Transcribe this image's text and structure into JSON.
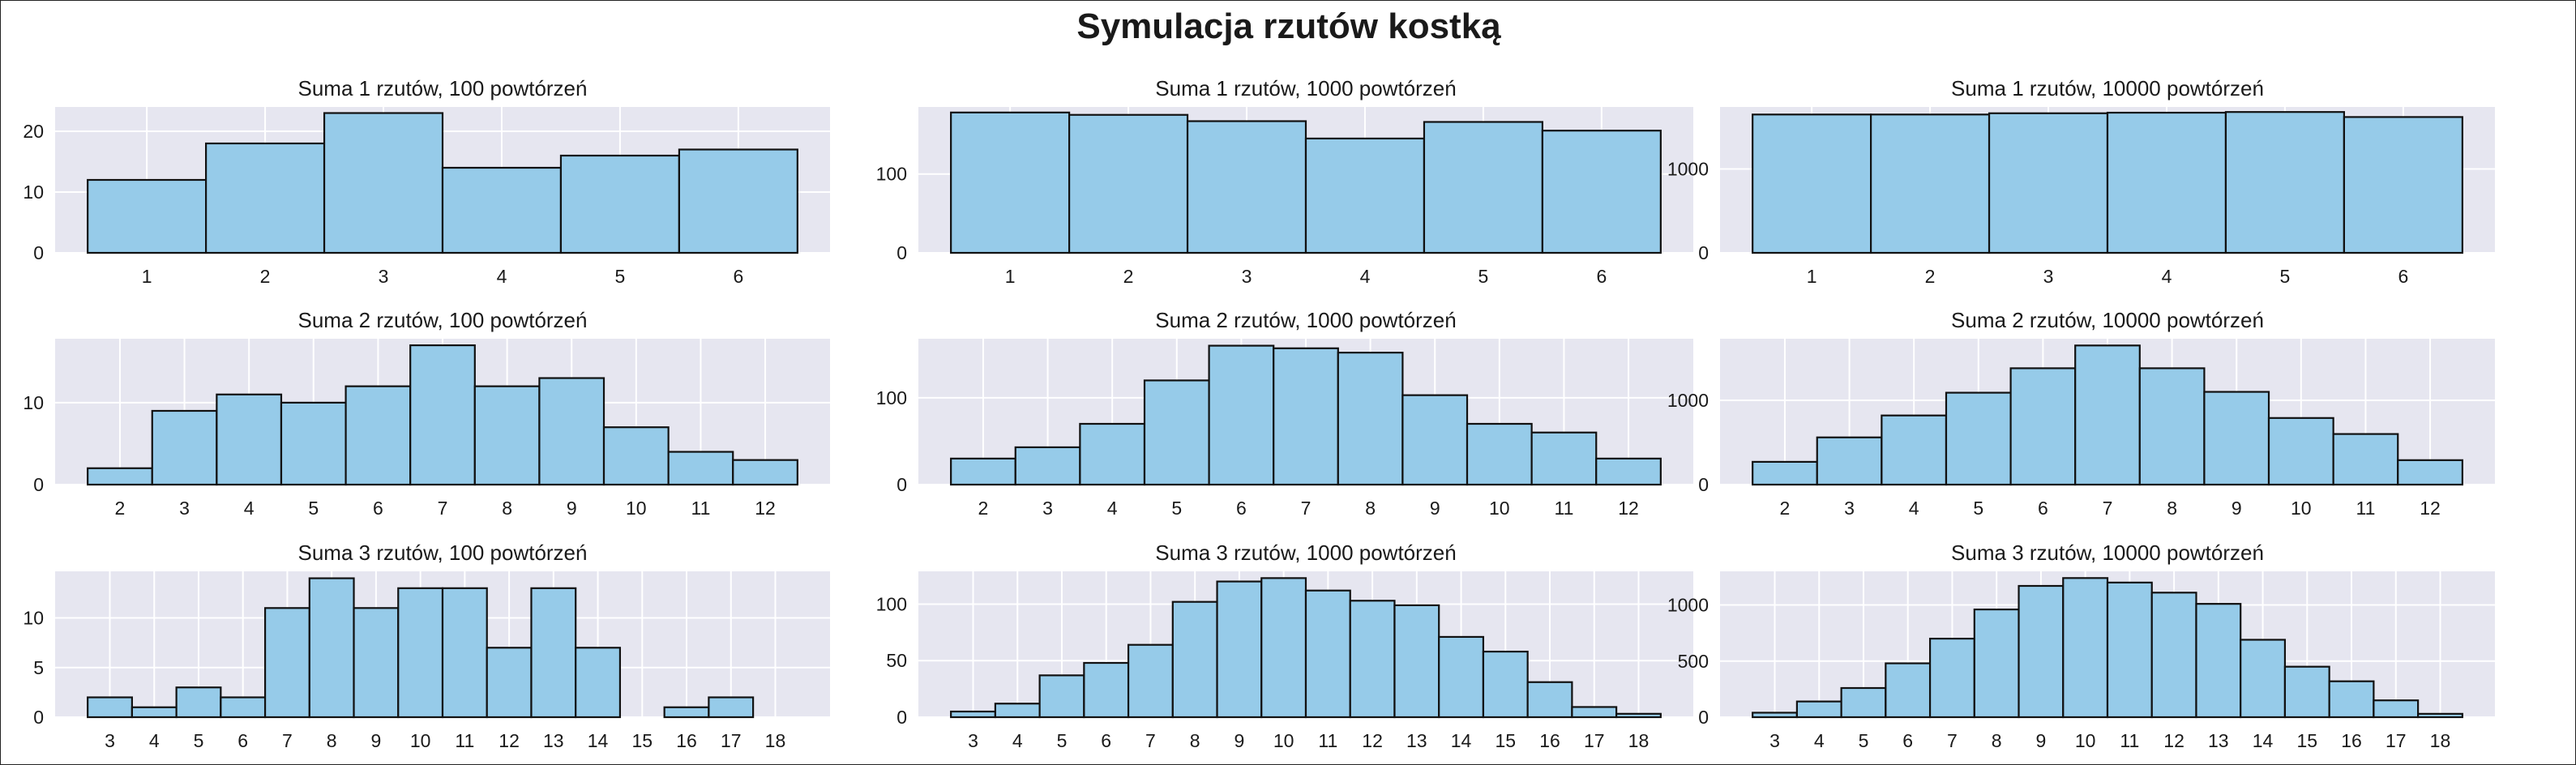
{
  "suptitle": "Symulacja rzutów kostką",
  "colors": {
    "bar_fill": "#96cbe9",
    "bar_edge": "#111111",
    "plot_bg": "#e6e6f0",
    "grid": "#ffffff"
  },
  "chart_data": [
    {
      "type": "bar",
      "title": "Suma 1 rzutów, 100 powtórzeń",
      "categories": [
        "1",
        "2",
        "3",
        "4",
        "5",
        "6"
      ],
      "values": [
        12,
        18,
        23,
        14,
        16,
        17
      ],
      "ylim": [
        0,
        24
      ],
      "yticks": [
        0,
        10,
        20
      ],
      "grid": true
    },
    {
      "type": "bar",
      "title": "Suma 1 rzutów, 1000 powtórzeń",
      "categories": [
        "1",
        "2",
        "3",
        "4",
        "5",
        "6"
      ],
      "values": [
        178,
        175,
        167,
        145,
        166,
        155
      ],
      "ylim": [
        0,
        185
      ],
      "yticks": [
        0,
        100
      ],
      "grid": true
    },
    {
      "type": "bar",
      "title": "Suma 1 rzutów, 10000 powtórzeń",
      "categories": [
        "1",
        "2",
        "3",
        "4",
        "5",
        "6"
      ],
      "values": [
        1650,
        1650,
        1665,
        1672,
        1680,
        1620
      ],
      "ylim": [
        0,
        1740
      ],
      "yticks": [
        0,
        1000
      ],
      "grid": true
    },
    {
      "type": "bar",
      "title": "Suma 2 rzutów, 100 powtórzeń",
      "categories": [
        "2",
        "3",
        "4",
        "5",
        "6",
        "7",
        "8",
        "9",
        "10",
        "11",
        "12"
      ],
      "values": [
        2,
        9,
        11,
        10,
        12,
        17,
        12,
        13,
        7,
        4,
        3
      ],
      "ylim": [
        0,
        17.8
      ],
      "yticks": [
        0,
        10
      ],
      "grid": true
    },
    {
      "type": "bar",
      "title": "Suma 2 rzutów, 1000 powtórzeń",
      "categories": [
        "2",
        "3",
        "4",
        "5",
        "6",
        "7",
        "8",
        "9",
        "10",
        "11",
        "12"
      ],
      "values": [
        30,
        43,
        70,
        120,
        160,
        157,
        152,
        103,
        70,
        60,
        30
      ],
      "ylim": [
        0,
        168
      ],
      "yticks": [
        0,
        100
      ],
      "grid": true
    },
    {
      "type": "bar",
      "title": "Suma 2 rzutów, 10000 powtórzeń",
      "categories": [
        "2",
        "3",
        "4",
        "5",
        "6",
        "7",
        "8",
        "9",
        "10",
        "11",
        "12"
      ],
      "values": [
        270,
        560,
        820,
        1090,
        1380,
        1650,
        1380,
        1100,
        790,
        600,
        290
      ],
      "ylim": [
        0,
        1730
      ],
      "yticks": [
        0,
        1000
      ],
      "grid": true
    },
    {
      "type": "bar",
      "title": "Suma 3 rzutów, 100 powtórzeń",
      "categories": [
        "3",
        "4",
        "5",
        "6",
        "7",
        "8",
        "9",
        "10",
        "11",
        "12",
        "13",
        "14",
        "15",
        "16",
        "17",
        "18"
      ],
      "values": [
        2,
        1,
        3,
        2,
        11,
        14,
        11,
        13,
        13,
        7,
        13,
        7,
        0,
        1,
        2,
        0
      ],
      "ylim": [
        0,
        14.7
      ],
      "yticks": [
        0,
        5,
        10
      ],
      "grid": true
    },
    {
      "type": "bar",
      "title": "Suma 3 rzutów, 1000 powtórzeń",
      "categories": [
        "3",
        "4",
        "5",
        "6",
        "7",
        "8",
        "9",
        "10",
        "11",
        "12",
        "13",
        "14",
        "15",
        "16",
        "17",
        "18"
      ],
      "values": [
        5,
        12,
        37,
        48,
        64,
        102,
        120,
        123,
        112,
        103,
        99,
        71,
        58,
        31,
        9,
        3
      ],
      "ylim": [
        0,
        129
      ],
      "yticks": [
        0,
        50,
        100
      ],
      "grid": true
    },
    {
      "type": "bar",
      "title": "Suma 3 rzutów, 10000 powtórzeń",
      "categories": [
        "3",
        "4",
        "5",
        "6",
        "7",
        "8",
        "9",
        "10",
        "11",
        "12",
        "13",
        "14",
        "15",
        "16",
        "17",
        "18"
      ],
      "values": [
        40,
        140,
        260,
        480,
        700,
        960,
        1170,
        1240,
        1200,
        1110,
        1010,
        690,
        450,
        320,
        150,
        30
      ],
      "ylim": [
        0,
        1300
      ],
      "yticks": [
        0,
        500,
        1000
      ],
      "grid": true
    }
  ]
}
